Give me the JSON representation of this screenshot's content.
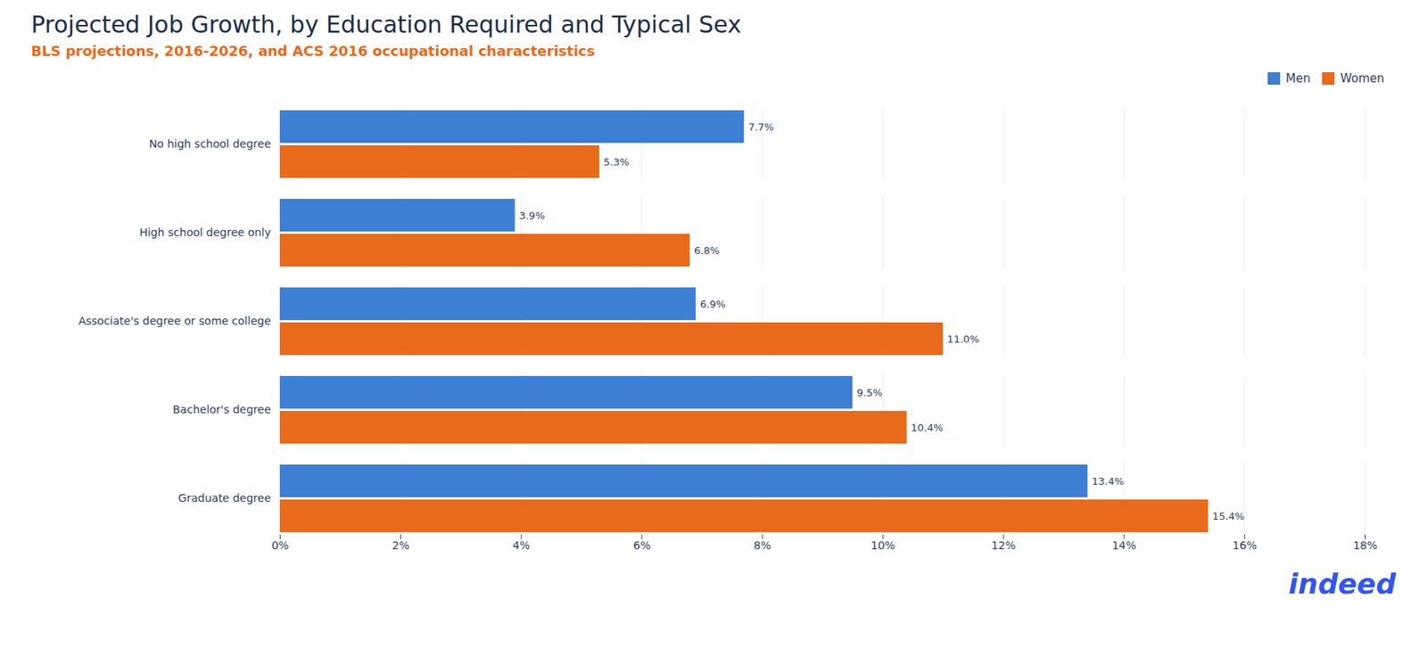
{
  "chart_data": {
    "type": "bar",
    "orientation": "horizontal",
    "title": "Projected Job Growth, by Education Required and Typical Sex",
    "subtitle": "BLS projections, 2016-2026, and ACS 2016 occupational characteristics",
    "categories": [
      "No high school degree",
      "High school degree only",
      "Associate's degree or some college",
      "Bachelor's degree",
      "Graduate degree"
    ],
    "series": [
      {
        "name": "Men",
        "color": "#3d7fd4",
        "values": [
          7.7,
          3.9,
          6.9,
          9.5,
          13.4
        ],
        "value_labels": [
          "7.7%",
          "3.9%",
          "6.9%",
          "9.5%",
          "13.4%"
        ]
      },
      {
        "name": "Women",
        "color": "#e86a1a",
        "values": [
          5.3,
          6.8,
          11.0,
          10.4,
          15.4
        ],
        "value_labels": [
          "5.3%",
          "6.8%",
          "11.0%",
          "10.4%",
          "15.4%"
        ]
      }
    ],
    "xlim": [
      0,
      18
    ],
    "xticks": [
      {
        "value": 0,
        "label": "0%"
      },
      {
        "value": 2,
        "label": "2%"
      },
      {
        "value": 4,
        "label": "4%"
      },
      {
        "value": 6,
        "label": "6%"
      },
      {
        "value": 8,
        "label": "8%"
      },
      {
        "value": 10,
        "label": "10%"
      },
      {
        "value": 12,
        "label": "12%"
      },
      {
        "value": 14,
        "label": "14%"
      },
      {
        "value": 16,
        "label": "16%"
      },
      {
        "value": 18,
        "label": "18%"
      }
    ],
    "grid": true,
    "legend": "upper right",
    "data_labels": true,
    "annotations": [
      "indeed"
    ]
  }
}
